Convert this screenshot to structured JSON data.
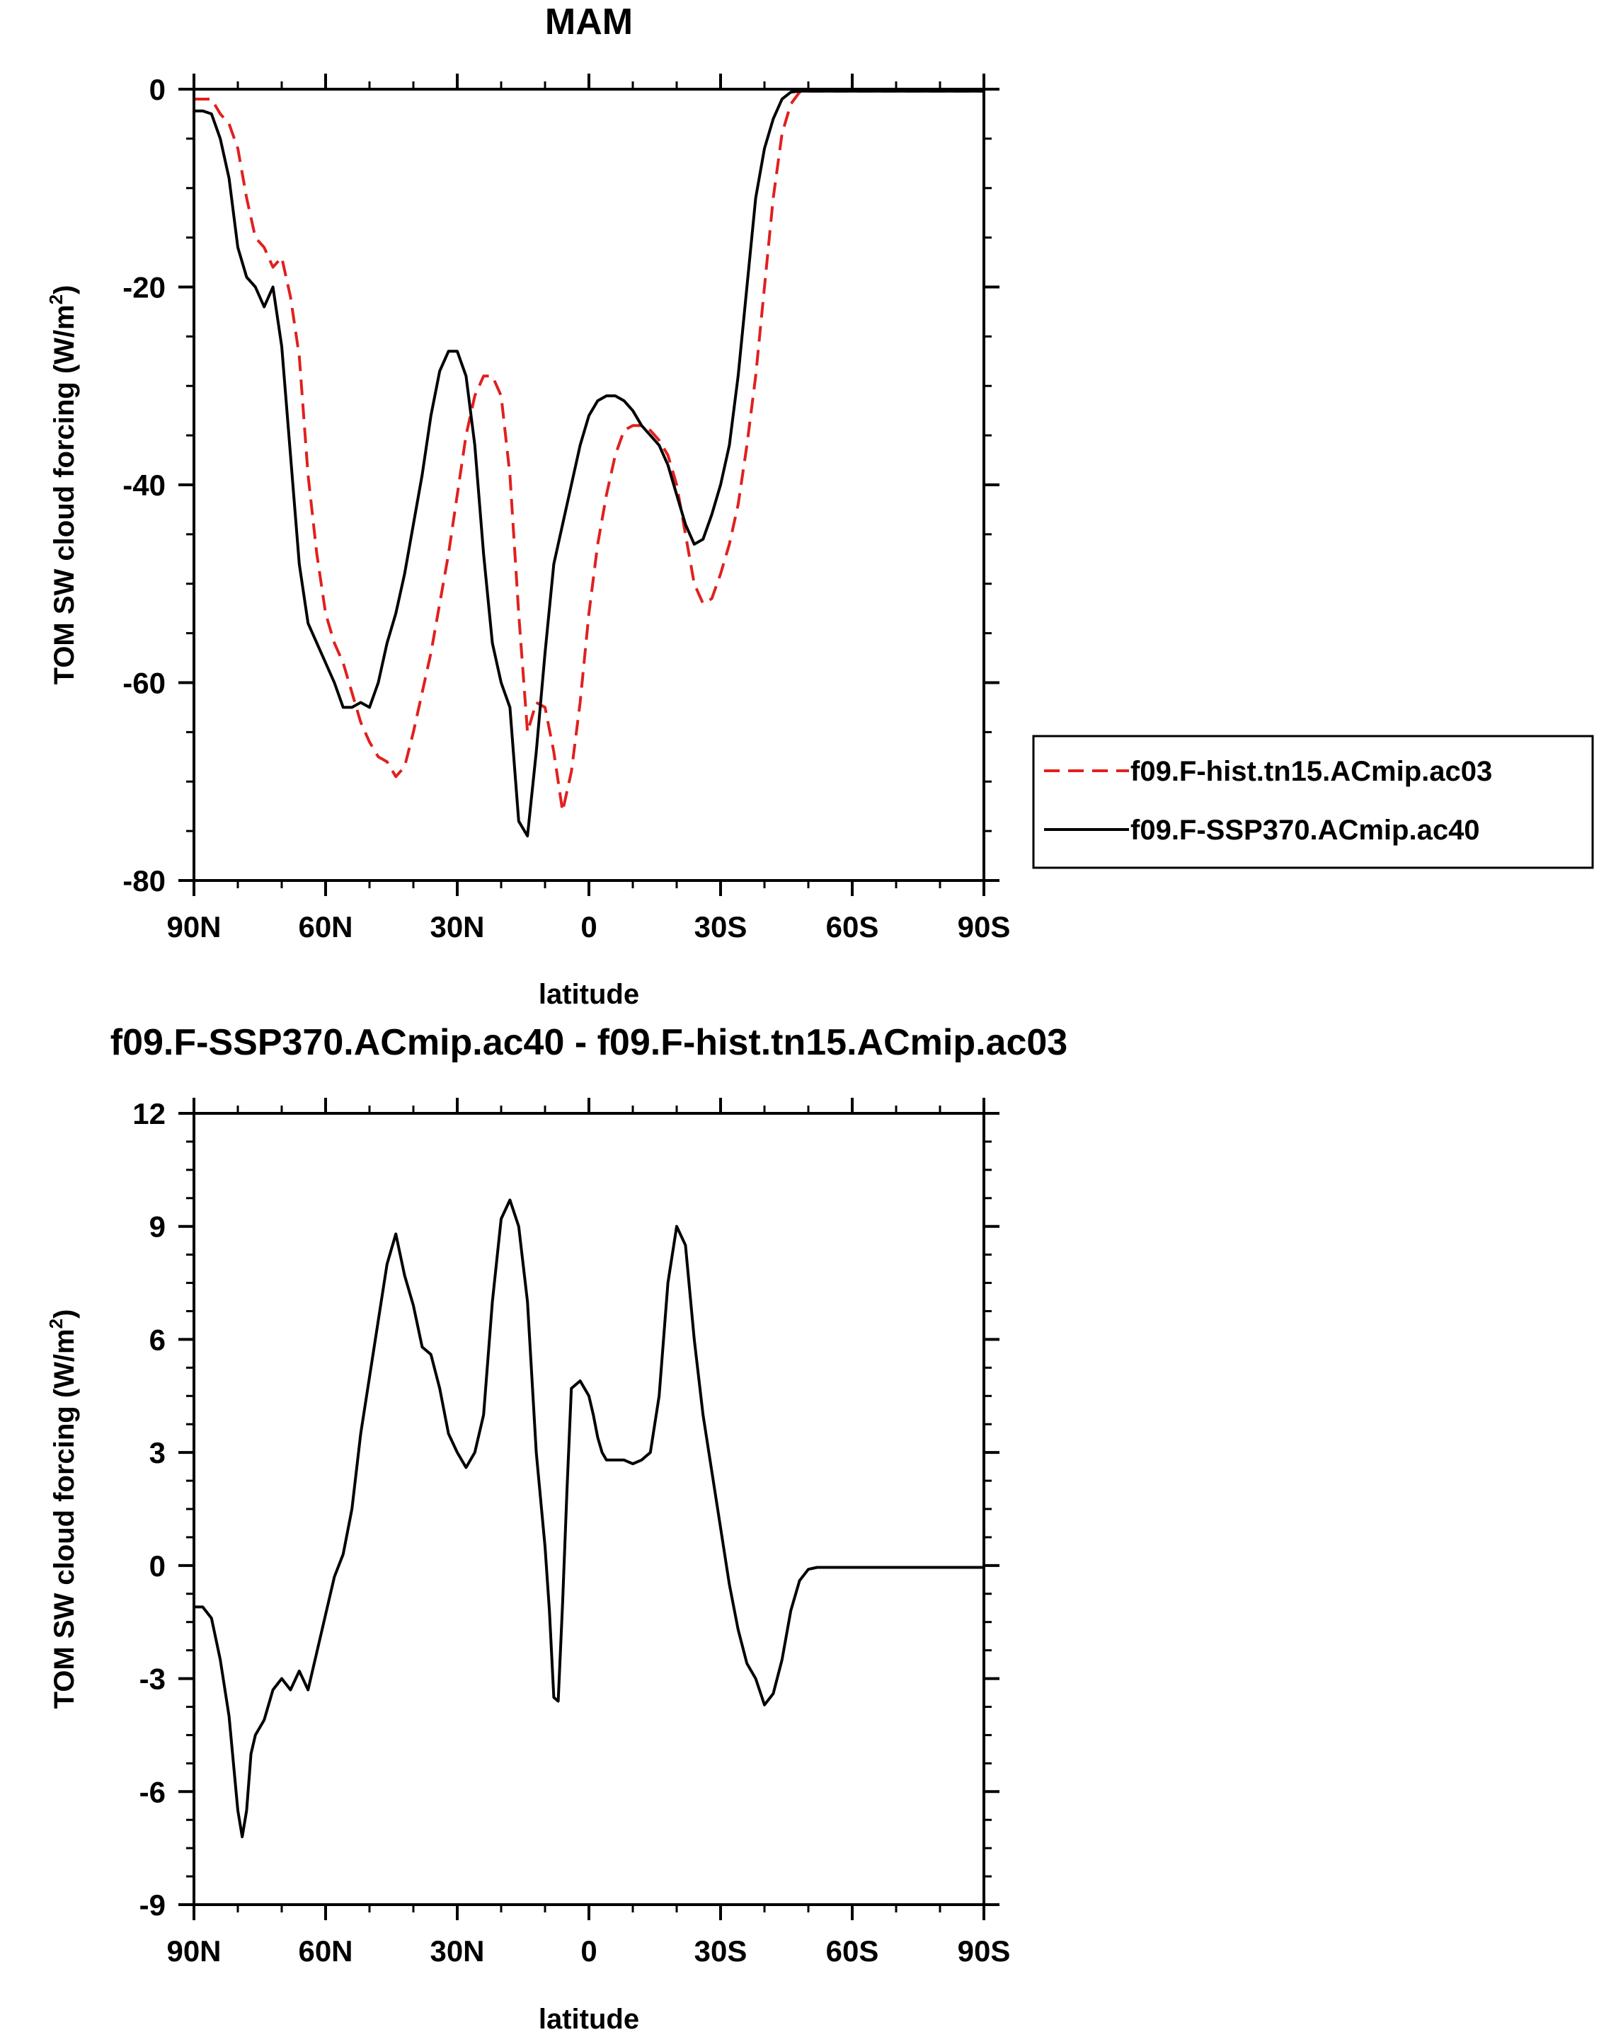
{
  "colors": {
    "hist": "#e0201e",
    "ssp": "#000000"
  },
  "chart_data": [
    {
      "type": "line",
      "title": "MAM",
      "xlabel": "latitude",
      "ylabel_main": "TOM SW cloud forcing (W/m",
      "ylabel_sup": "2",
      "ylabel_close": ")",
      "xlim": [
        90,
        -90
      ],
      "ylim": [
        -80,
        0
      ],
      "xticks": [
        90,
        60,
        30,
        0,
        -30,
        -60,
        -90
      ],
      "xtick_labels": [
        "90N",
        "60N",
        "30N",
        "0",
        "30S",
        "60S",
        "90S"
      ],
      "yticks": [
        0,
        -20,
        -40,
        -60,
        -80
      ],
      "ytick_labels": [
        "0",
        "-20",
        "-40",
        "-60",
        "-80"
      ],
      "legend_position": "right",
      "series": [
        {
          "name": "f09.F-hist.tn15.ACmip.ac03",
          "style": "dashed",
          "color": "#e0201e",
          "x": [
            90,
            88,
            86,
            84,
            82,
            80,
            78,
            76,
            74,
            72,
            70,
            68,
            66,
            64,
            62,
            60,
            58,
            56,
            54,
            52,
            50,
            48,
            46,
            44,
            42,
            40,
            38,
            36,
            34,
            32,
            30,
            28,
            26,
            24,
            22,
            20,
            18,
            16,
            14,
            12,
            10,
            8,
            6,
            4,
            2,
            0,
            -2,
            -4,
            -6,
            -8,
            -10,
            -12,
            -14,
            -16,
            -18,
            -20,
            -22,
            -24,
            -26,
            -28,
            -30,
            -32,
            -34,
            -36,
            -38,
            -40,
            -42,
            -44,
            -46,
            -48,
            -50,
            -52,
            -54,
            -56,
            -58,
            -60,
            -62,
            -64,
            -66,
            -68,
            -70,
            -72,
            -74,
            -76,
            -78,
            -80,
            -82,
            -84,
            -86,
            -88,
            -90
          ],
          "values": [
            -1,
            -1,
            -1,
            -2.5,
            -3.5,
            -6,
            -11,
            -15,
            -16,
            -18,
            -17,
            -21,
            -27,
            -39,
            -47,
            -53,
            -56,
            -58,
            -61,
            -64,
            -66,
            -67.5,
            -68,
            -69.5,
            -68.5,
            -65,
            -61,
            -57,
            -52,
            -47,
            -41,
            -35,
            -31,
            -29,
            -29,
            -31,
            -39,
            -53,
            -65,
            -62,
            -62.5,
            -67,
            -73,
            -69,
            -62,
            -53,
            -46,
            -41,
            -37,
            -34.5,
            -34,
            -34,
            -34.5,
            -35.5,
            -37,
            -40,
            -45,
            -50,
            -52,
            -51.5,
            -49,
            -46,
            -42,
            -36,
            -29,
            -20,
            -11,
            -4.5,
            -1.5,
            -0.3,
            -0.2,
            -0.2,
            -0.2,
            -0.2,
            -0.2,
            -0.2,
            -0.2,
            -0.2,
            -0.2,
            -0.2,
            -0.2,
            -0.2,
            -0.2,
            -0.2,
            -0.2,
            -0.2,
            -0.2,
            -0.2,
            -0.2,
            -0.2,
            -0.2
          ]
        },
        {
          "name": "f09.F-SSP370.ACmip.ac40",
          "style": "solid",
          "color": "#000000",
          "x": [
            90,
            88,
            86,
            84,
            82,
            80,
            78,
            76,
            74,
            72,
            70,
            68,
            66,
            64,
            62,
            60,
            58,
            56,
            54,
            52,
            50,
            48,
            46,
            44,
            42,
            40,
            38,
            36,
            34,
            32,
            30,
            28,
            26,
            24,
            22,
            20,
            18,
            16,
            14,
            12,
            10,
            8,
            6,
            4,
            2,
            0,
            -2,
            -4,
            -6,
            -8,
            -10,
            -12,
            -14,
            -16,
            -18,
            -20,
            -22,
            -24,
            -26,
            -28,
            -30,
            -32,
            -34,
            -36,
            -38,
            -40,
            -42,
            -44,
            -46,
            -48,
            -50,
            -52,
            -54,
            -56,
            -58,
            -60,
            -62,
            -64,
            -66,
            -68,
            -70,
            -72,
            -74,
            -76,
            -78,
            -80,
            -82,
            -84,
            -86,
            -88,
            -90
          ],
          "values": [
            -2.2,
            -2.2,
            -2.5,
            -5,
            -9,
            -16,
            -19,
            -20,
            -22,
            -20,
            -26,
            -37,
            -48,
            -54,
            -56,
            -58,
            -60,
            -62.5,
            -62.5,
            -62,
            -62.5,
            -60,
            -56,
            -53,
            -49,
            -44,
            -39,
            -33,
            -28.5,
            -26.5,
            -26.5,
            -29,
            -36,
            -47,
            -56,
            -60,
            -62.5,
            -74,
            -75.5,
            -67,
            -57,
            -48,
            -44,
            -40,
            -36,
            -33,
            -31.5,
            -31,
            -31,
            -31.5,
            -32.5,
            -34,
            -35,
            -36,
            -38,
            -41,
            -44,
            -46,
            -45.5,
            -43,
            -40,
            -36,
            -29,
            -20,
            -11,
            -6,
            -3,
            -1,
            -0.3,
            -0.2,
            -0.2,
            -0.2,
            -0.2,
            -0.2,
            -0.2,
            -0.2,
            -0.2,
            -0.2,
            -0.2,
            -0.2,
            -0.2,
            -0.2,
            -0.2,
            -0.2,
            -0.2,
            -0.2,
            -0.2,
            -0.2,
            -0.2,
            -0.2,
            -0.2
          ]
        }
      ]
    },
    {
      "type": "line",
      "title": "f09.F-SSP370.ACmip.ac40 - f09.F-hist.tn15.ACmip.ac03",
      "xlabel": "latitude",
      "ylabel_main": "TOM SW cloud forcing (W/m",
      "ylabel_sup": "2",
      "ylabel_close": ")",
      "xlim": [
        90,
        -90
      ],
      "ylim": [
        -9,
        12
      ],
      "xticks": [
        90,
        60,
        30,
        0,
        -30,
        -60,
        -90
      ],
      "xtick_labels": [
        "90N",
        "60N",
        "30N",
        "0",
        "30S",
        "60S",
        "90S"
      ],
      "yticks": [
        12,
        9,
        6,
        3,
        0,
        -3,
        -6,
        -9
      ],
      "ytick_labels": [
        "12",
        "9",
        "6",
        "3",
        "0",
        "-3",
        "-6",
        "-9"
      ],
      "series": [
        {
          "name": "f09.F-SSP370.ACmip.ac40 - f09.F-hist.tn15.ACmip.ac03",
          "style": "solid",
          "color": "#000000",
          "x": [
            90,
            88,
            86,
            84,
            82,
            80,
            79,
            78,
            77,
            76,
            74,
            72,
            70,
            68,
            66,
            64,
            62,
            60,
            58,
            56,
            54,
            52,
            50,
            48,
            46,
            44,
            42,
            40,
            38,
            36,
            34,
            32,
            30,
            28,
            26,
            24,
            22,
            20,
            18,
            16,
            14,
            12,
            10,
            9,
            8,
            7,
            6,
            5,
            4,
            2,
            0,
            -1,
            -2,
            -3,
            -4,
            -6,
            -8,
            -10,
            -12,
            -14,
            -16,
            -18,
            -20,
            -22,
            -24,
            -26,
            -28,
            -30,
            -32,
            -34,
            -36,
            -38,
            -40,
            -42,
            -44,
            -46,
            -48,
            -50,
            -52,
            -54,
            -56,
            -58,
            -60,
            -62,
            -64,
            -66,
            -68,
            -70,
            -72,
            -74,
            -76,
            -78,
            -80,
            -82,
            -84,
            -86,
            -88,
            -90
          ],
          "values": [
            -1.1,
            -1.1,
            -1.4,
            -2.5,
            -4,
            -6.5,
            -7.2,
            -6.5,
            -5,
            -4.5,
            -4.1,
            -3.3,
            -3,
            -3.3,
            -2.8,
            -3.3,
            -2.3,
            -1.3,
            -0.3,
            0.3,
            1.5,
            3.5,
            5,
            6.5,
            8,
            8.8,
            7.7,
            6.9,
            5.8,
            5.6,
            4.7,
            3.5,
            3,
            2.6,
            3,
            4,
            7,
            9.2,
            9.7,
            9,
            7,
            3,
            0.5,
            -1.2,
            -3.5,
            -3.6,
            -1,
            2,
            4.7,
            4.9,
            4.5,
            4,
            3.4,
            3,
            2.8,
            2.8,
            2.8,
            2.7,
            2.8,
            3,
            4.5,
            7.5,
            9,
            8.5,
            6,
            4,
            2.5,
            1,
            -0.5,
            -1.7,
            -2.6,
            -3,
            -3.7,
            -3.4,
            -2.5,
            -1.2,
            -0.4,
            -0.1,
            -0.05,
            -0.05,
            -0.05,
            -0.05,
            -0.05,
            -0.05,
            -0.05,
            -0.05,
            -0.05,
            -0.05,
            -0.05,
            -0.05,
            -0.05,
            -0.05,
            -0.05,
            -0.05,
            -0.05,
            -0.05,
            -0.05,
            -0.05
          ]
        }
      ]
    }
  ]
}
